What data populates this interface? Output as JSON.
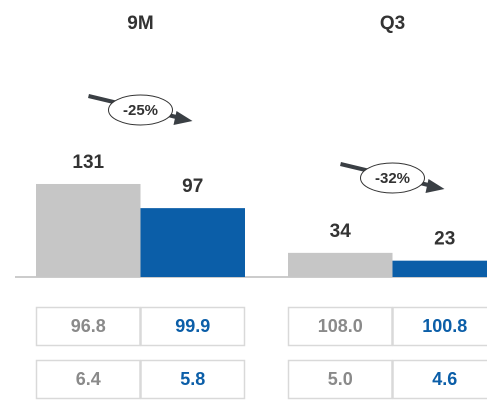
{
  "chart_data": [
    {
      "type": "bar",
      "title": "9M",
      "values": [
        131,
        97
      ],
      "colors": [
        "#c6c6c6",
        "#0b5ea8"
      ],
      "annotation": "-25%",
      "table": [
        [
          "96.8",
          "99.9"
        ],
        [
          "6.4",
          "5.8"
        ]
      ]
    },
    {
      "type": "bar",
      "title": "Q3",
      "values": [
        34,
        23
      ],
      "colors": [
        "#c6c6c6",
        "#0b5ea8"
      ],
      "annotation": "-32%",
      "table": [
        [
          "108.0",
          "100.8"
        ],
        [
          "5.0",
          "4.6"
        ]
      ]
    }
  ]
}
